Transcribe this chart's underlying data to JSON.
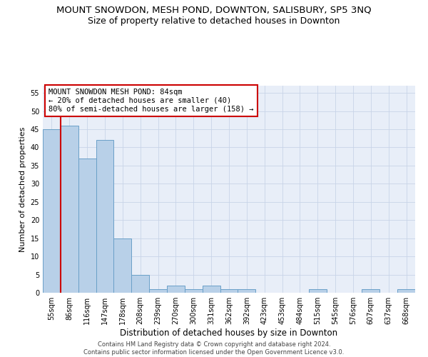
{
  "title": "MOUNT SNOWDON, MESH POND, DOWNTON, SALISBURY, SP5 3NQ",
  "subtitle": "Size of property relative to detached houses in Downton",
  "xlabel": "Distribution of detached houses by size in Downton",
  "ylabel": "Number of detached properties",
  "footer_line1": "Contains HM Land Registry data © Crown copyright and database right 2024.",
  "footer_line2": "Contains public sector information licensed under the Open Government Licence v3.0.",
  "bin_labels": [
    "55sqm",
    "86sqm",
    "116sqm",
    "147sqm",
    "178sqm",
    "208sqm",
    "239sqm",
    "270sqm",
    "300sqm",
    "331sqm",
    "362sqm",
    "392sqm",
    "423sqm",
    "453sqm",
    "484sqm",
    "515sqm",
    "545sqm",
    "576sqm",
    "607sqm",
    "637sqm",
    "668sqm"
  ],
  "bar_values": [
    45,
    46,
    37,
    42,
    15,
    5,
    1,
    2,
    1,
    2,
    1,
    1,
    0,
    0,
    0,
    1,
    0,
    0,
    1,
    0,
    1
  ],
  "bar_color": "#b8d0e8",
  "bar_edge_color": "#6aa0c8",
  "subject_line_color": "#cc0000",
  "annotation_text": "MOUNT SNOWDON MESH POND: 84sqm\n← 20% of detached houses are smaller (40)\n80% of semi-detached houses are larger (158) →",
  "annotation_box_color": "#ffffff",
  "annotation_box_edge_color": "#cc0000",
  "ylim": [
    0,
    57
  ],
  "yticks": [
    0,
    5,
    10,
    15,
    20,
    25,
    30,
    35,
    40,
    45,
    50,
    55
  ],
  "bg_color": "#e8eef8",
  "title_fontsize": 9.5,
  "subtitle_fontsize": 9,
  "ylabel_fontsize": 8,
  "xlabel_fontsize": 8.5,
  "tick_fontsize": 7,
  "annotation_fontsize": 7.5,
  "footer_fontsize": 6
}
